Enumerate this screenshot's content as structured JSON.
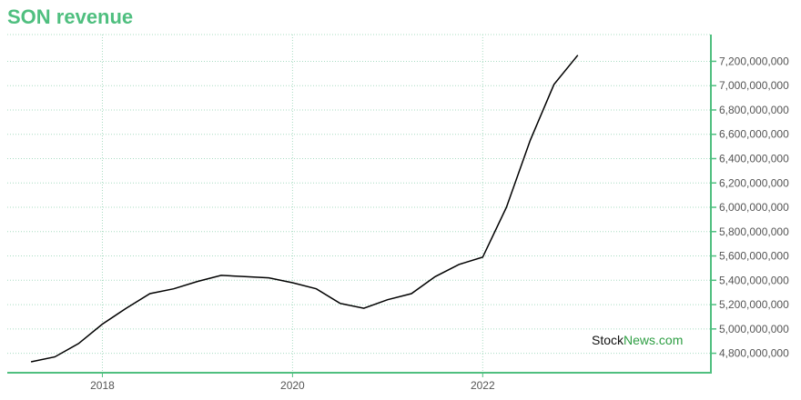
{
  "title": "SON revenue",
  "watermark": {
    "part1": "Stock",
    "part2": "News",
    "part3": ".com"
  },
  "colors": {
    "title": "#4fbf7f",
    "axis": "#4fbf7f",
    "grid": "#a8dcc2",
    "line": "#000000",
    "watermark_green": "#2e9e43"
  },
  "chart_data": {
    "type": "line",
    "title": "SON revenue",
    "xlabel": "",
    "ylabel": "",
    "x_ticks": [
      {
        "label": "2018",
        "value": 2018.0
      },
      {
        "label": "2020",
        "value": 2020.0
      },
      {
        "label": "2022",
        "value": 2022.0
      }
    ],
    "y_ticks": [
      {
        "label": "4,800,000,000",
        "value": 4800000000
      },
      {
        "label": "5,000,000,000",
        "value": 5000000000
      },
      {
        "label": "5,200,000,000",
        "value": 5200000000
      },
      {
        "label": "5,400,000,000",
        "value": 5400000000
      },
      {
        "label": "5,600,000,000",
        "value": 5600000000
      },
      {
        "label": "5,800,000,000",
        "value": 5800000000
      },
      {
        "label": "6,000,000,000",
        "value": 6000000000
      },
      {
        "label": "6,200,000,000",
        "value": 6200000000
      },
      {
        "label": "6,400,000,000",
        "value": 6400000000
      },
      {
        "label": "6,600,000,000",
        "value": 6600000000
      },
      {
        "label": "6,800,000,000",
        "value": 6800000000
      },
      {
        "label": "7,000,000,000",
        "value": 7000000000
      },
      {
        "label": "7,200,000,000",
        "value": 7200000000
      }
    ],
    "xlim": [
      2017.0,
      2024.4
    ],
    "ylim": [
      4640000000,
      7420000000
    ],
    "y_axis_position": "right",
    "grid": true,
    "series": [
      {
        "x": [
          2017.25,
          2017.5,
          2017.75,
          2018.0,
          2018.25,
          2018.5,
          2018.75,
          2019.0,
          2019.25,
          2019.5,
          2019.75,
          2020.0,
          2020.25,
          2020.5,
          2020.75,
          2021.0,
          2021.25,
          2021.5,
          2021.75,
          2022.0,
          2022.25,
          2022.5,
          2022.75,
          2023.0
        ],
        "y": [
          4730000000,
          4770000000,
          4880000000,
          5040000000,
          5170000000,
          5290000000,
          5330000000,
          5390000000,
          5440000000,
          5430000000,
          5420000000,
          5380000000,
          5330000000,
          5210000000,
          5170000000,
          5240000000,
          5290000000,
          5430000000,
          5530000000,
          5590000000,
          6000000000,
          6550000000,
          7010000000,
          7250000000
        ]
      }
    ]
  }
}
